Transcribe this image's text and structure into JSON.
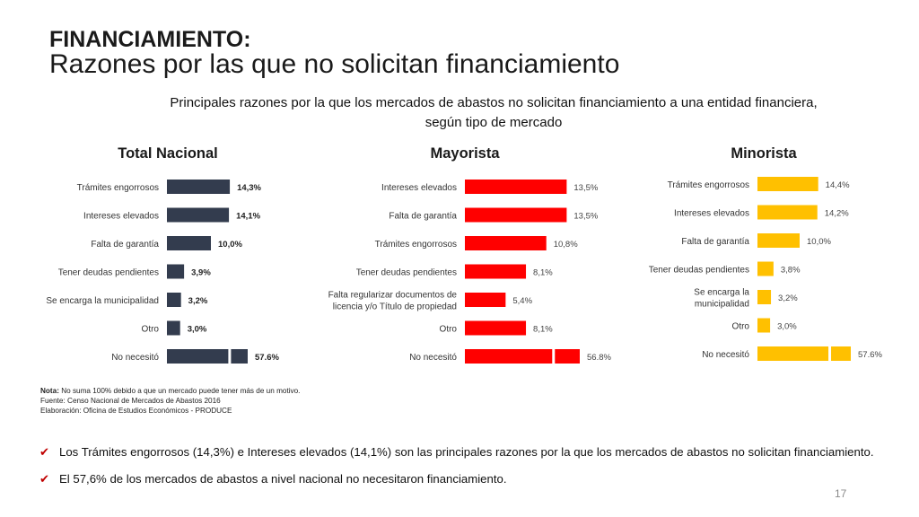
{
  "header": {
    "title": "FINANCIAMIENTO:",
    "subtitle": "Razones por las que no solicitan financiamiento"
  },
  "chart_caption": "Principales razones por la que los mercados de abastos no solicitan financiamiento a una entidad financiera, según tipo de mercado",
  "chart_data": [
    {
      "type": "bar",
      "orientation": "horizontal",
      "title": "Total Nacional",
      "color": "#333c4e",
      "categories": [
        "Trámites engorrosos",
        "Intereses elevados",
        "Falta de garantía",
        "Tener deudas pendientes",
        "Se encarga la municipalidad",
        "Otro",
        "No necesitó"
      ],
      "values": [
        14.3,
        14.1,
        10.0,
        3.9,
        3.2,
        3.0,
        57.6
      ],
      "labels": [
        "14,3%",
        "14,1%",
        "10,0%",
        "3,9%",
        "3,2%",
        "3,0%",
        "57.6%"
      ],
      "axis_break_on_last": true
    },
    {
      "type": "bar",
      "orientation": "horizontal",
      "title": "Mayorista",
      "color": "#ff0000",
      "categories": [
        "Intereses elevados",
        "Falta de garantía",
        "Trámites engorrosos",
        "Tener deudas pendientes",
        "Falta regularizar documentos de licencia y/o Título de propiedad",
        "Otro",
        "No necesitó"
      ],
      "values": [
        13.5,
        13.5,
        10.8,
        8.1,
        5.4,
        8.1,
        56.8
      ],
      "labels": [
        "13,5%",
        "13,5%",
        "10,8%",
        "8,1%",
        "5,4%",
        "8,1%",
        "56.8%"
      ],
      "axis_break_on_last": true
    },
    {
      "type": "bar",
      "orientation": "horizontal",
      "title": "Minorista",
      "color": "#ffc000",
      "categories": [
        "Trámites engorrosos",
        "Intereses elevados",
        "Falta de garantía",
        "Tener deudas pendientes",
        "Se encarga la municipalidad",
        "Otro",
        "No necesitó"
      ],
      "values": [
        14.4,
        14.2,
        10.0,
        3.8,
        3.2,
        3.0,
        57.6
      ],
      "labels": [
        "14,4%",
        "14,2%",
        "10,0%",
        "3,8%",
        "3,2%",
        "3,0%",
        "57.6%"
      ],
      "axis_break_on_last": true
    }
  ],
  "notes": {
    "nota_label": "Nota:",
    "nota_text": " No suma 100% debido a que un mercado puede tener más de un motivo.",
    "fuente": "Fuente: Censo Nacional de Mercados de Abastos 2016",
    "elaboracion": "Elaboración: Oficina de Estudios Económicos - PRODUCE"
  },
  "bullets": [
    "Los Trámites engorrosos (14,3%) e Intereses elevados (14,1%) son las principales razones por la que los mercados de abastos no solicitan financiamiento.",
    "El 57,6% de los mercados de abastos a nivel nacional no necesitaron financiamiento."
  ],
  "page_number": "17"
}
